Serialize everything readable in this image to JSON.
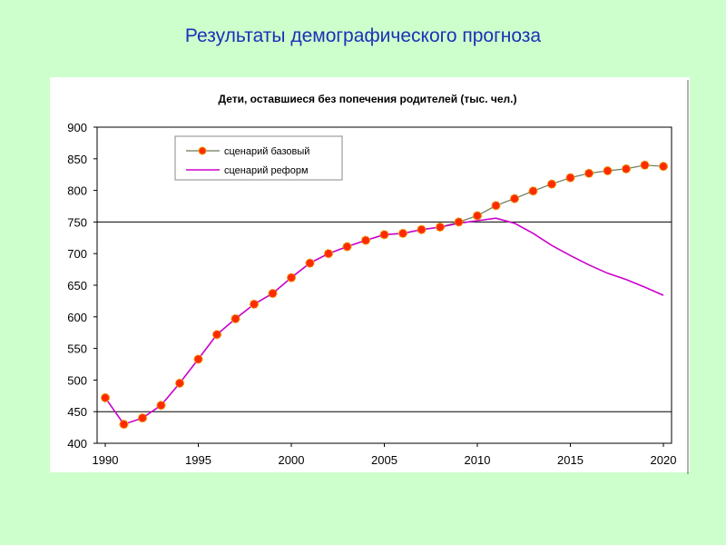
{
  "slide": {
    "title": "Результаты демографического прогноза"
  },
  "chart_data": {
    "type": "line",
    "title": "Дети, оставшиеся без попечения родителей (тыс. чел.)",
    "xlabel": "",
    "ylabel": "",
    "xlim": [
      1990,
      2020
    ],
    "ylim": [
      400,
      900
    ],
    "x_ticks": [
      "1990",
      "1995",
      "2000",
      "2005",
      "2010",
      "2015",
      "2020"
    ],
    "y_ticks": [
      "400",
      "450",
      "500",
      "550",
      "600",
      "650",
      "700",
      "750",
      "800",
      "850",
      "900"
    ],
    "grid": "horizontal at 450, 750",
    "legend_position": "top-left",
    "colors": {
      "series_base_marker": "#ff2a00",
      "series_base_line": "#6a7a5a",
      "series_reform": "#cc00cc"
    },
    "series": [
      {
        "name": "сценарий базовый",
        "x": [
          1990,
          1991,
          1992,
          1993,
          1994,
          1995,
          1996,
          1997,
          1998,
          1999,
          2000,
          2001,
          2002,
          2003,
          2004,
          2005,
          2006,
          2007,
          2008,
          2009,
          2010,
          2011,
          2012,
          2013,
          2014,
          2015,
          2016,
          2017,
          2018,
          2019,
          2020
        ],
        "values": [
          472,
          430,
          440,
          460,
          495,
          533,
          572,
          597,
          620,
          637,
          662,
          685,
          700,
          711,
          721,
          730,
          732,
          738,
          742,
          750,
          760,
          776,
          787,
          799,
          810,
          820,
          827,
          831,
          834,
          840,
          838
        ]
      },
      {
        "name": "сценарий реформ",
        "x": [
          1990,
          1991,
          1992,
          1993,
          1994,
          1995,
          1996,
          1997,
          1998,
          1999,
          2000,
          2001,
          2002,
          2003,
          2004,
          2005,
          2006,
          2007,
          2008,
          2009,
          2010,
          2011,
          2012,
          2013,
          2014,
          2015,
          2016,
          2017,
          2018,
          2019,
          2020
        ],
        "values": [
          472,
          430,
          440,
          460,
          495,
          533,
          572,
          597,
          620,
          637,
          662,
          685,
          700,
          711,
          721,
          730,
          732,
          738,
          742,
          748,
          752,
          756,
          748,
          732,
          713,
          697,
          682,
          669,
          659,
          647,
          634
        ]
      }
    ]
  }
}
